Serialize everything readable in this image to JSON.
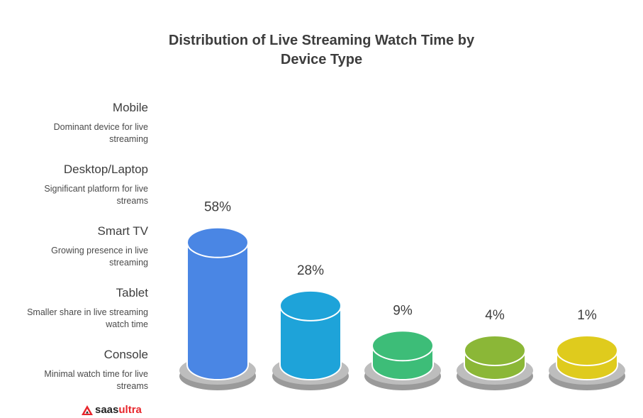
{
  "title_line1": "Distribution of Live Streaming Watch Time by",
  "title_line2": "Device Type",
  "chart_data": {
    "type": "bar",
    "title": "Distribution of Live Streaming Watch Time by Device Type",
    "categories": [
      "Mobile",
      "Desktop/Laptop",
      "Smart TV",
      "Tablet",
      "Console"
    ],
    "values": [
      58,
      28,
      9,
      4,
      1
    ],
    "value_labels": [
      "58%",
      "28%",
      "9%",
      "4%",
      "1%"
    ],
    "descriptions": [
      "Dominant device for live streaming",
      "Significant platform for live streams",
      "Growing presence in live streaming",
      "Smaller share in live streaming watch time",
      "Minimal watch time for live streams"
    ],
    "colors": [
      "#4a86e4",
      "#1ea3d9",
      "#3dbd78",
      "#8bb737",
      "#dfcb1d"
    ],
    "legend_position": "left"
  },
  "brand": {
    "prefix": "saas",
    "suffix": "ultra"
  }
}
